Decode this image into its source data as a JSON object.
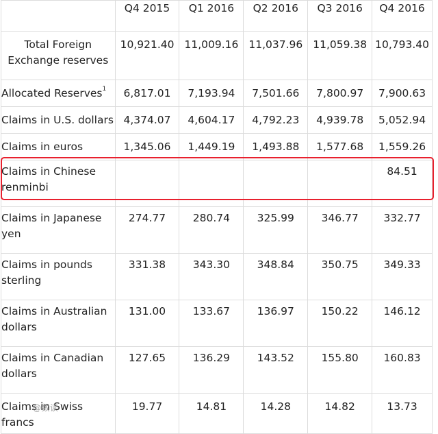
{
  "table": {
    "header": [
      "",
      "Q4 2015",
      "Q1 2016",
      "Q2 2016",
      "Q3 2016",
      "Q4 2016"
    ],
    "rows": [
      {
        "label": "Total Foreign Exchange reserves",
        "values": [
          "10,921.40",
          "11,009.16",
          "11,037.96",
          "11,059.38",
          "10,793.40"
        ]
      },
      {
        "label": "Allocated Reserves",
        "footnote": "1",
        "values": [
          "6,817.01",
          "7,193.94",
          "7,501.66",
          "7,800.97",
          "7,900.63"
        ]
      },
      {
        "label": "Claims in U.S. dollars",
        "values": [
          "4,374.07",
          "4,604.17",
          "4,792.23",
          "4,939.78",
          "5,052.94"
        ]
      },
      {
        "label": "Claims in euros",
        "values": [
          "1,345.06",
          "1,449.19",
          "1,493.88",
          "1,577.68",
          "1,559.26"
        ]
      },
      {
        "label": "Claims in Chinese renminbi",
        "values": [
          "",
          "",
          "",
          "",
          "84.51"
        ]
      },
      {
        "label": "Claims in Japanese yen",
        "values": [
          "274.77",
          "280.74",
          "325.99",
          "346.77",
          "332.77"
        ]
      },
      {
        "label": "Claims in pounds sterling",
        "values": [
          "331.38",
          "343.30",
          "348.84",
          "350.75",
          "349.33"
        ]
      },
      {
        "label": "Claims in Australian dollars",
        "values": [
          "131.00",
          "133.67",
          "136.97",
          "150.22",
          "146.12"
        ]
      },
      {
        "label": "Claims in Canadian dollars",
        "values": [
          "127.65",
          "136.29",
          "143.52",
          "155.80",
          "160.83"
        ]
      },
      {
        "label": "Claims in Swiss francs",
        "values": [
          "19.77",
          "14.81",
          "14.28",
          "14.82",
          "13.73"
        ]
      }
    ]
  },
  "highlight": {
    "color": "#e8202e",
    "row_label": "Claims in Chinese renminbi"
  },
  "watermark": "@数读"
}
